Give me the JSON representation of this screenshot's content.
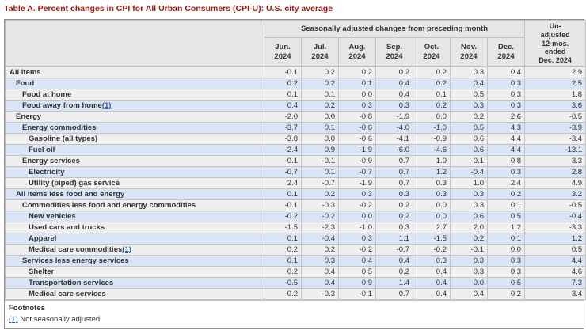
{
  "title": "Table A. Percent changes in CPI for All Urban Consumers (CPI-U): U.S. city average",
  "table": {
    "span_header": "Seasonally adjusted changes from preceding month",
    "months": [
      "Jun. 2024",
      "Jul. 2024",
      "Aug. 2024",
      "Sep. 2024",
      "Oct. 2024",
      "Nov. 2024",
      "Dec. 2024"
    ],
    "unadjusted_header": "Un-adjusted 12-mos. ended Dec. 2024",
    "unadjusted_header_lines": [
      "Un-",
      "adjusted",
      "12-mos.",
      "ended",
      "Dec. 2024"
    ],
    "rows": [
      {
        "label": "All items",
        "level": 0,
        "footnote_marker": "",
        "monthly": [
          "-0.1",
          "0.2",
          "0.2",
          "0.2",
          "0.2",
          "0.3",
          "0.4"
        ],
        "yearly": "2.9"
      },
      {
        "label": "Food",
        "level": 1,
        "footnote_marker": "",
        "monthly": [
          "0.2",
          "0.2",
          "0.1",
          "0.4",
          "0.2",
          "0.4",
          "0.3"
        ],
        "yearly": "2.5"
      },
      {
        "label": "Food at home",
        "level": 2,
        "footnote_marker": "",
        "monthly": [
          "0.1",
          "0.1",
          "0.0",
          "0.4",
          "0.1",
          "0.5",
          "0.3"
        ],
        "yearly": "1.8"
      },
      {
        "label": "Food away from home",
        "level": 2,
        "footnote_marker": "(1)",
        "monthly": [
          "0.4",
          "0.2",
          "0.3",
          "0.3",
          "0.2",
          "0.3",
          "0.3"
        ],
        "yearly": "3.6"
      },
      {
        "label": "Energy",
        "level": 1,
        "footnote_marker": "",
        "monthly": [
          "-2.0",
          "0.0",
          "-0.8",
          "-1.9",
          "0.0",
          "0.2",
          "2.6"
        ],
        "yearly": "-0.5"
      },
      {
        "label": "Energy commodities",
        "level": 2,
        "footnote_marker": "",
        "monthly": [
          "-3.7",
          "0.1",
          "-0.6",
          "-4.0",
          "-1.0",
          "0.5",
          "4.3"
        ],
        "yearly": "-3.9"
      },
      {
        "label": "Gasoline (all types)",
        "level": 3,
        "footnote_marker": "",
        "monthly": [
          "-3.8",
          "0.0",
          "-0.6",
          "-4.1",
          "-0.9",
          "0.6",
          "4.4"
        ],
        "yearly": "-3.4"
      },
      {
        "label": "Fuel oil",
        "level": 3,
        "footnote_marker": "",
        "monthly": [
          "-2.4",
          "0.9",
          "-1.9",
          "-6.0",
          "-4.6",
          "0.6",
          "4.4"
        ],
        "yearly": "-13.1"
      },
      {
        "label": "Energy services",
        "level": 2,
        "footnote_marker": "",
        "monthly": [
          "-0.1",
          "-0.1",
          "-0.9",
          "0.7",
          "1.0",
          "-0.1",
          "0.8"
        ],
        "yearly": "3.3"
      },
      {
        "label": "Electricity",
        "level": 3,
        "footnote_marker": "",
        "monthly": [
          "-0.7",
          "0.1",
          "-0.7",
          "0.7",
          "1.2",
          "-0.4",
          "0.3"
        ],
        "yearly": "2.8"
      },
      {
        "label": "Utility (piped) gas service",
        "level": 3,
        "footnote_marker": "",
        "monthly": [
          "2.4",
          "-0.7",
          "-1.9",
          "0.7",
          "0.3",
          "1.0",
          "2.4"
        ],
        "yearly": "4.9"
      },
      {
        "label": "All items less food and energy",
        "level": 1,
        "footnote_marker": "",
        "monthly": [
          "0.1",
          "0.2",
          "0.3",
          "0.3",
          "0.3",
          "0.3",
          "0.2"
        ],
        "yearly": "3.2"
      },
      {
        "label": "Commodities less food and energy commodities",
        "level": 2,
        "footnote_marker": "",
        "monthly": [
          "-0.1",
          "-0.3",
          "-0.2",
          "0.2",
          "0.0",
          "0.3",
          "0.1"
        ],
        "yearly": "-0.5"
      },
      {
        "label": "New vehicles",
        "level": 3,
        "footnote_marker": "",
        "monthly": [
          "-0.2",
          "-0.2",
          "0.0",
          "0.2",
          "0.0",
          "0.6",
          "0.5"
        ],
        "yearly": "-0.4"
      },
      {
        "label": "Used cars and trucks",
        "level": 3,
        "footnote_marker": "",
        "monthly": [
          "-1.5",
          "-2.3",
          "-1.0",
          "0.3",
          "2.7",
          "2.0",
          "1.2"
        ],
        "yearly": "-3.3"
      },
      {
        "label": "Apparel",
        "level": 3,
        "footnote_marker": "",
        "monthly": [
          "0.1",
          "-0.4",
          "0.3",
          "1.1",
          "-1.5",
          "0.2",
          "0.1"
        ],
        "yearly": "1.2"
      },
      {
        "label": "Medical care commodities",
        "level": 3,
        "footnote_marker": "(1)",
        "monthly": [
          "0.2",
          "0.2",
          "-0.2",
          "-0.7",
          "-0.2",
          "-0.1",
          "0.0"
        ],
        "yearly": "0.5"
      },
      {
        "label": "Services less energy services",
        "level": 2,
        "footnote_marker": "",
        "monthly": [
          "0.1",
          "0.3",
          "0.4",
          "0.4",
          "0.3",
          "0.3",
          "0.3"
        ],
        "yearly": "4.4"
      },
      {
        "label": "Shelter",
        "level": 3,
        "footnote_marker": "",
        "monthly": [
          "0.2",
          "0.4",
          "0.5",
          "0.2",
          "0.4",
          "0.3",
          "0.3"
        ],
        "yearly": "4.6"
      },
      {
        "label": "Transportation services",
        "level": 3,
        "footnote_marker": "",
        "monthly": [
          "-0.5",
          "0.4",
          "0.9",
          "1.4",
          "0.4",
          "0.0",
          "0.5"
        ],
        "yearly": "7.3"
      },
      {
        "label": "Medical care services",
        "level": 3,
        "footnote_marker": "",
        "monthly": [
          "0.2",
          "-0.3",
          "-0.1",
          "0.7",
          "0.4",
          "0.4",
          "0.2"
        ],
        "yearly": "3.4"
      }
    ]
  },
  "footnotes": {
    "heading": "Footnotes",
    "items": [
      {
        "marker": "(1)",
        "text": "Not seasonally adjusted."
      }
    ]
  },
  "colors": {
    "title_red": "#9c1a10",
    "header_gray": "#e6e6e6",
    "row_gray": "#efefef",
    "row_blue": "#d9e4f6",
    "link_blue": "#2c5aa0",
    "border_gray": "#c3c3c3",
    "text": "#333333"
  }
}
